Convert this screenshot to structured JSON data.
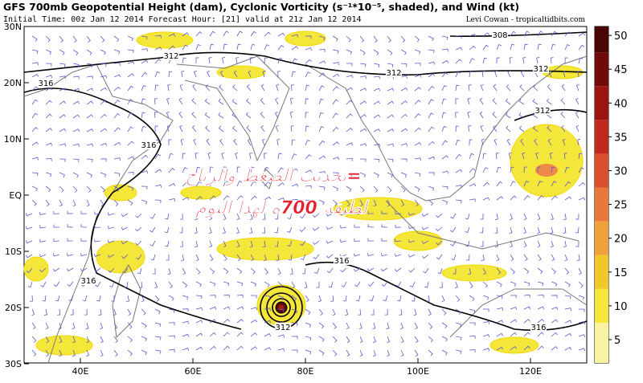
{
  "header": {
    "title": "GFS 700mb Geopotential Height (dam), Cyclonic Vorticity (s⁻¹*10⁻⁵, shaded), and Wind (kt)",
    "subtitle": "Initial Time: 00z Jan 12 2014 Forecast Hour: [21] valid at 21z Jan 12 2014",
    "credit": "Levi Cowan - tropicaltidbits.com"
  },
  "map": {
    "lat_labels": [
      "30N",
      "20N",
      "10N",
      "EQ",
      "10S",
      "20S",
      "30S"
    ],
    "lon_labels": [
      "40E",
      "60E",
      "80E",
      "100E",
      "120E"
    ],
    "contour_labels": [
      "312",
      "308",
      "312",
      "312",
      "312",
      "316",
      "316",
      "316",
      "316",
      "312",
      "316"
    ],
    "overlay_text": [
      "=تحديث الضغط والرياح",
      "لطبقة 700ه لهذا اليوم"
    ]
  },
  "colorbar": {
    "ticks": [
      5,
      10,
      15,
      20,
      25,
      30,
      35,
      40,
      45,
      50
    ]
  }
}
